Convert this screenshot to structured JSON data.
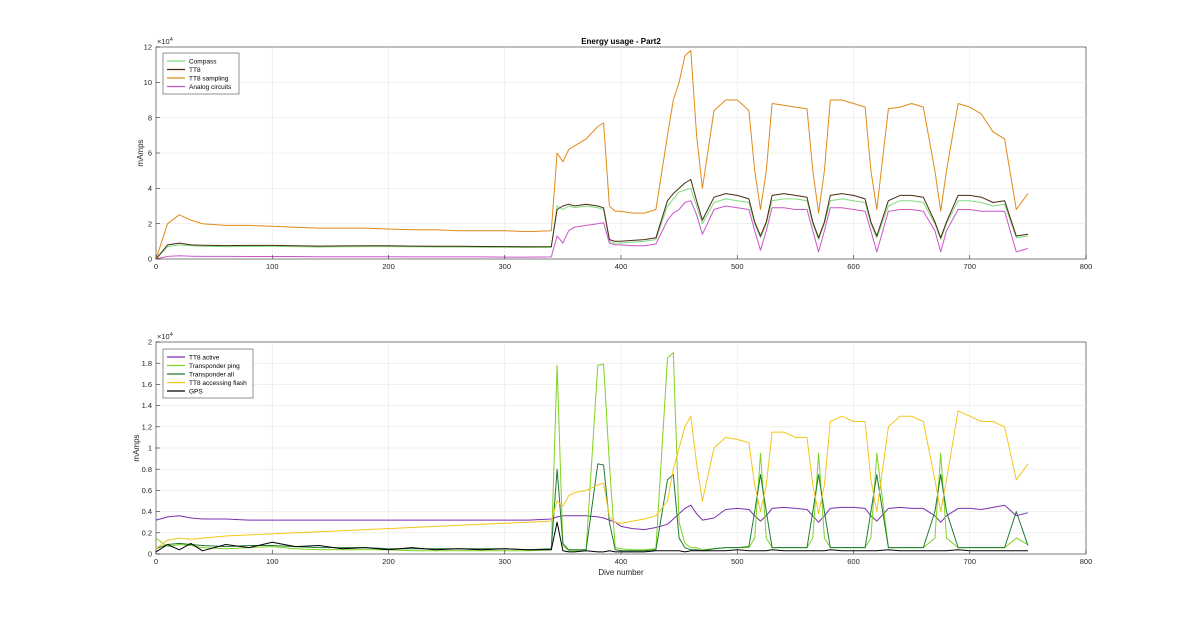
{
  "figure": {
    "background": "#ffffff"
  },
  "chart_data": [
    {
      "type": "line",
      "title": "Energy usage - Part2",
      "xlabel": "",
      "ylabel": "mAmps",
      "xlim": [
        0,
        800
      ],
      "ylim": [
        0,
        120000
      ],
      "exponent_label": "×10",
      "exponent_power": "4",
      "grid": true,
      "legend_position": "top-left",
      "x_ticks": [
        0,
        100,
        200,
        300,
        400,
        500,
        600,
        700,
        800
      ],
      "x_tick_labels": [
        "0",
        "100",
        "200",
        "300",
        "400",
        "500",
        "600",
        "700",
        "800"
      ],
      "y_ticks": [
        0,
        20000,
        40000,
        60000,
        80000,
        100000,
        120000
      ],
      "y_tick_labels": [
        "0",
        "2",
        "4",
        "6",
        "8",
        "10",
        "12"
      ],
      "x": [
        0,
        10,
        20,
        30,
        40,
        60,
        80,
        100,
        120,
        140,
        160,
        180,
        200,
        220,
        240,
        260,
        280,
        300,
        320,
        340,
        345,
        350,
        355,
        360,
        370,
        380,
        385,
        390,
        395,
        400,
        410,
        420,
        430,
        440,
        445,
        450,
        455,
        460,
        465,
        470,
        480,
        490,
        500,
        510,
        515,
        520,
        525,
        530,
        540,
        550,
        560,
        565,
        570,
        575,
        580,
        590,
        600,
        610,
        615,
        620,
        630,
        640,
        650,
        660,
        670,
        675,
        680,
        690,
        700,
        710,
        720,
        730,
        740,
        750
      ],
      "series": [
        {
          "name": "Compass",
          "color": "#7ddc7d",
          "values": [
            0,
            7000,
            8000,
            7500,
            7200,
            7000,
            7100,
            7200,
            7000,
            6800,
            6900,
            7000,
            7000,
            6900,
            6800,
            6800,
            6700,
            6600,
            6500,
            6500,
            30000,
            28000,
            30000,
            29000,
            30000,
            29000,
            28000,
            10000,
            9000,
            9000,
            9500,
            10000,
            11000,
            30000,
            34000,
            38000,
            39000,
            40000,
            30000,
            20000,
            32000,
            34000,
            33000,
            32000,
            20000,
            12000,
            20000,
            33000,
            34000,
            34000,
            33000,
            20000,
            11000,
            20000,
            33000,
            34000,
            33000,
            32000,
            20000,
            12000,
            30000,
            33000,
            33000,
            32000,
            20000,
            11000,
            20000,
            33000,
            33000,
            32000,
            30000,
            31000,
            12000,
            13000
          ]
        },
        {
          "name": "TT8",
          "color": "#4a2a10",
          "values": [
            0,
            8000,
            9000,
            8000,
            7800,
            7600,
            7700,
            7700,
            7500,
            7300,
            7400,
            7500,
            7500,
            7300,
            7200,
            7200,
            7100,
            7000,
            6900,
            7000,
            28000,
            30000,
            31000,
            30000,
            31000,
            30000,
            29000,
            11000,
            10000,
            10000,
            10500,
            11000,
            12000,
            33000,
            37000,
            40000,
            43000,
            45000,
            33000,
            22000,
            35000,
            37000,
            36000,
            34000,
            21000,
            13000,
            21000,
            36000,
            37000,
            36000,
            35000,
            21000,
            12000,
            21000,
            36000,
            37000,
            36000,
            34000,
            21000,
            13000,
            33000,
            36000,
            36000,
            35000,
            21000,
            12000,
            21000,
            36000,
            36000,
            35000,
            32000,
            33000,
            13000,
            14000
          ]
        },
        {
          "name": "TT8 sampling",
          "color": "#e08a16",
          "values": [
            0,
            20000,
            25000,
            22000,
            20000,
            19000,
            19000,
            18500,
            18000,
            17500,
            17500,
            17500,
            17000,
            16500,
            16500,
            16000,
            16000,
            16000,
            15500,
            16000,
            60000,
            55000,
            62000,
            64000,
            68000,
            75000,
            77000,
            30000,
            27000,
            27000,
            26000,
            26000,
            28000,
            70000,
            90000,
            100000,
            115000,
            118000,
            70000,
            40000,
            84000,
            90000,
            90000,
            84000,
            50000,
            28000,
            50000,
            88000,
            87000,
            86000,
            85000,
            50000,
            26000,
            50000,
            90000,
            90000,
            88000,
            86000,
            50000,
            28000,
            85000,
            86000,
            88000,
            86000,
            50000,
            27000,
            50000,
            88000,
            86000,
            82000,
            72000,
            68000,
            28000,
            37000
          ]
        },
        {
          "name": "Analog circuits",
          "color": "#cc55cc",
          "values": [
            0,
            1500,
            1800,
            1600,
            1500,
            1500,
            1400,
            1400,
            1400,
            1300,
            1300,
            1300,
            1300,
            1200,
            1200,
            1200,
            1200,
            1100,
            1100,
            1200,
            13000,
            9000,
            16000,
            18000,
            19000,
            20000,
            20500,
            9000,
            8000,
            8000,
            7500,
            7500,
            8500,
            22000,
            26000,
            28000,
            32000,
            33000,
            25000,
            14000,
            28000,
            30000,
            29000,
            28000,
            16000,
            5000,
            16000,
            29000,
            29000,
            28000,
            28000,
            16000,
            4000,
            16000,
            29000,
            29000,
            28000,
            27000,
            16000,
            4000,
            27000,
            28000,
            28000,
            27000,
            16000,
            4000,
            16000,
            28000,
            28000,
            27000,
            27000,
            27000,
            4000,
            6000
          ]
        }
      ]
    },
    {
      "type": "line",
      "title": "",
      "xlabel": "Dive number",
      "ylabel": "mAmps",
      "xlim": [
        0,
        800
      ],
      "ylim": [
        0,
        20000
      ],
      "exponent_label": "×10",
      "exponent_power": "4",
      "grid": true,
      "legend_position": "top-left",
      "x_ticks": [
        0,
        100,
        200,
        300,
        400,
        500,
        600,
        700,
        800
      ],
      "x_tick_labels": [
        "0",
        "100",
        "200",
        "300",
        "400",
        "500",
        "600",
        "700",
        "800"
      ],
      "y_ticks": [
        0,
        2000,
        4000,
        6000,
        8000,
        10000,
        12000,
        14000,
        16000,
        18000,
        20000
      ],
      "y_tick_labels": [
        "0",
        "0.2",
        "0.4",
        "0.6",
        "0.8",
        "1",
        "1.2",
        "1.4",
        "1.6",
        "1.8",
        "2"
      ],
      "x": [
        0,
        10,
        20,
        30,
        40,
        60,
        80,
        100,
        120,
        140,
        160,
        180,
        200,
        220,
        240,
        260,
        280,
        300,
        320,
        340,
        345,
        350,
        355,
        360,
        370,
        380,
        385,
        390,
        395,
        400,
        410,
        420,
        430,
        440,
        445,
        450,
        455,
        460,
        465,
        470,
        480,
        490,
        500,
        510,
        515,
        520,
        525,
        530,
        540,
        550,
        560,
        565,
        570,
        575,
        580,
        590,
        600,
        610,
        615,
        620,
        630,
        640,
        650,
        660,
        670,
        675,
        680,
        690,
        700,
        710,
        720,
        730,
        740,
        750
      ],
      "series": [
        {
          "name": "TT8 active",
          "color": "#7a2fb0",
          "values": [
            3200,
            3500,
            3600,
            3400,
            3300,
            3300,
            3200,
            3200,
            3200,
            3200,
            3200,
            3200,
            3200,
            3200,
            3200,
            3200,
            3200,
            3200,
            3200,
            3300,
            3500,
            3600,
            3600,
            3600,
            3600,
            3500,
            3400,
            3200,
            3000,
            2600,
            2400,
            2300,
            2500,
            2800,
            3300,
            3800,
            4300,
            4600,
            3800,
            3200,
            3400,
            4200,
            4300,
            4200,
            3600,
            3100,
            3600,
            4300,
            4400,
            4300,
            4200,
            3600,
            3000,
            3600,
            4300,
            4400,
            4400,
            4300,
            3600,
            3100,
            4300,
            4400,
            4300,
            4300,
            3600,
            3000,
            3600,
            4300,
            4300,
            4200,
            4400,
            4600,
            3600,
            3900
          ]
        },
        {
          "name": "Transponder ping",
          "color": "#7ed321",
          "values": [
            1500,
            700,
            900,
            800,
            600,
            500,
            600,
            700,
            500,
            400,
            400,
            400,
            400,
            300,
            300,
            300,
            300,
            300,
            300,
            400,
            17800,
            800,
            300,
            300,
            400,
            17800,
            17900,
            8500,
            600,
            500,
            400,
            400,
            500,
            18500,
            19000,
            3000,
            1000,
            600,
            600,
            400,
            500,
            600,
            600,
            600,
            1500,
            9500,
            1500,
            600,
            600,
            600,
            600,
            1500,
            9500,
            1500,
            600,
            600,
            600,
            600,
            1500,
            9500,
            600,
            600,
            600,
            600,
            1500,
            9500,
            1500,
            600,
            600,
            600,
            600,
            600,
            1500,
            900
          ]
        },
        {
          "name": "Transponder all",
          "color": "#1f7a35",
          "values": [
            500,
            900,
            1000,
            900,
            800,
            700,
            800,
            800,
            700,
            600,
            600,
            600,
            500,
            500,
            500,
            500,
            500,
            500,
            400,
            500,
            8000,
            1000,
            400,
            400,
            400,
            8500,
            8400,
            3000,
            400,
            300,
            300,
            300,
            400,
            7000,
            7500,
            1500,
            600,
            400,
            400,
            300,
            500,
            600,
            600,
            700,
            4000,
            7500,
            4000,
            600,
            600,
            600,
            600,
            4000,
            7500,
            4000,
            600,
            600,
            600,
            600,
            4000,
            7500,
            600,
            600,
            600,
            600,
            4000,
            7500,
            4000,
            600,
            600,
            600,
            600,
            600,
            4000,
            800
          ]
        },
        {
          "name": "TT8 accessing flash",
          "color": "#f5c518",
          "values": [
            500,
            1300,
            1500,
            1400,
            1500,
            1700,
            1800,
            1900,
            2000,
            2100,
            2200,
            2300,
            2400,
            2500,
            2600,
            2700,
            2800,
            2900,
            3000,
            3100,
            5000,
            4500,
            5500,
            5800,
            6000,
            6500,
            6700,
            3500,
            3000,
            2900,
            3100,
            3300,
            3600,
            5000,
            8000,
            10000,
            12000,
            13000,
            8500,
            5000,
            10000,
            11000,
            10800,
            10500,
            6500,
            4000,
            6500,
            11500,
            11500,
            11000,
            11000,
            6500,
            3800,
            6500,
            12500,
            13000,
            12500,
            12500,
            7000,
            4000,
            12000,
            13000,
            13000,
            12500,
            7000,
            4000,
            7000,
            13500,
            13000,
            12500,
            12500,
            12000,
            7000,
            8500
          ]
        },
        {
          "name": "GPS",
          "color": "#000000",
          "values": [
            200,
            900,
            400,
            1000,
            300,
            900,
            600,
            1100,
            700,
            800,
            500,
            600,
            400,
            600,
            400,
            500,
            400,
            500,
            400,
            400,
            3000,
            300,
            200,
            200,
            300,
            200,
            200,
            300,
            200,
            200,
            200,
            200,
            300,
            300,
            300,
            300,
            200,
            300,
            300,
            300,
            300,
            300,
            400,
            300,
            300,
            300,
            300,
            400,
            300,
            300,
            300,
            300,
            300,
            300,
            400,
            300,
            300,
            300,
            300,
            300,
            400,
            300,
            300,
            300,
            300,
            300,
            300,
            400,
            300,
            300,
            300,
            300,
            300,
            300
          ]
        }
      ]
    }
  ]
}
